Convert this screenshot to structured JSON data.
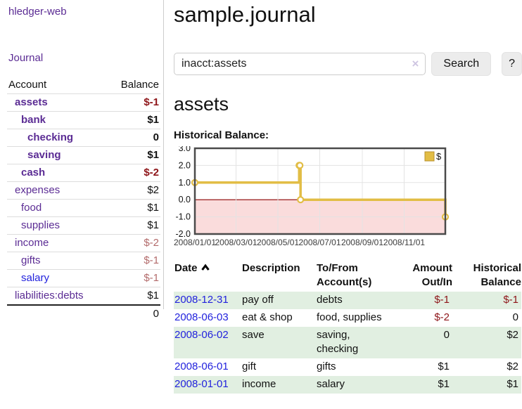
{
  "app": {
    "brand": "hledger-web",
    "nav": {
      "journal": "Journal"
    }
  },
  "sidebar": {
    "header": {
      "account": "Account",
      "balance": "Balance"
    },
    "rows": [
      {
        "name": "assets",
        "balance": "$-1",
        "depth": 0
      },
      {
        "name": "bank",
        "balance": "$1",
        "depth": 1
      },
      {
        "name": "checking",
        "balance": "0",
        "depth": 2
      },
      {
        "name": "saving",
        "balance": "$1",
        "depth": 2
      },
      {
        "name": "cash",
        "balance": "$-2",
        "depth": 1
      },
      {
        "name": "expenses",
        "balance": "$2",
        "depth": 0
      },
      {
        "name": "food",
        "balance": "$1",
        "depth": 1
      },
      {
        "name": "supplies",
        "balance": "$1",
        "depth": 1
      },
      {
        "name": "income",
        "balance": "$-2",
        "depth": 0
      },
      {
        "name": "gifts",
        "balance": "$-1",
        "depth": 1
      },
      {
        "name": "salary",
        "balance": "$-1",
        "depth": 1
      },
      {
        "name": "liabilities:debts",
        "balance": "$1",
        "depth": 0
      }
    ],
    "total": "0"
  },
  "main": {
    "title": "sample.journal",
    "search": {
      "value": "inacct:assets",
      "clear_icon": "×",
      "button_label": "Search",
      "help_label": "?"
    },
    "account_heading": "assets",
    "chart_label": "Historical Balance:",
    "register": {
      "headers": {
        "date": "Date",
        "description": "Description",
        "tofrom_line1": "To/From",
        "tofrom_line2": "Account(s)",
        "amount_line1": "Amount",
        "amount_line2": "Out/In",
        "balance_line1": "Historical",
        "balance_line2": "Balance"
      },
      "rows": [
        {
          "date": "2008-12-31",
          "description": "pay off",
          "accounts": "debts",
          "amount": "$-1",
          "balance": "$-1"
        },
        {
          "date": "2008-06-03",
          "description": "eat & shop",
          "accounts": "food, supplies",
          "amount": "$-2",
          "balance": "0"
        },
        {
          "date": "2008-06-02",
          "description": "save",
          "accounts": "saving, checking",
          "amount": "0",
          "balance": "$2"
        },
        {
          "date": "2008-06-01",
          "description": "gift",
          "accounts": "gifts",
          "amount": "$1",
          "balance": "$2"
        },
        {
          "date": "2008-01-01",
          "description": "income",
          "accounts": "salary",
          "amount": "$1",
          "balance": "$1"
        }
      ]
    }
  },
  "chart_data": {
    "type": "line",
    "title": "Historical Balance",
    "xlabel": "",
    "ylabel": "",
    "step": true,
    "series": [
      {
        "name": "$",
        "points": [
          [
            "2008-01-01",
            1
          ],
          [
            "2008-06-01",
            2
          ],
          [
            "2008-06-02",
            2
          ],
          [
            "2008-06-03",
            0
          ],
          [
            "2008-12-31",
            -1
          ]
        ]
      }
    ],
    "xlim": [
      "2008-01-01",
      "2008-12-31"
    ],
    "ylim": [
      -2,
      3
    ],
    "yticks": [
      "3.0",
      "2.0",
      "1.0",
      "0.0",
      "-1.0",
      "-2.0"
    ],
    "xticks": [
      "2008/01/01",
      "2008/03/01",
      "2008/05/01",
      "2008/07/01",
      "2008/09/01",
      "2008/11/01"
    ],
    "grid": true,
    "legend_position": "top-right",
    "line_color": "#e2bd45",
    "swatch_border_color": "#b8912f",
    "negative_region_color": "#fadcdc",
    "zero_line_color": "#8b0000"
  },
  "colors": {
    "link_purple": "#5b2c94",
    "link_blue": "#2222dd",
    "negative_strong": "#8e1519",
    "negative_weak": "#b36b6b",
    "row_stripe_green": "#e1efe1",
    "chart_gold": "#e2bd45",
    "chart_negative_pink": "#fadcdc"
  }
}
